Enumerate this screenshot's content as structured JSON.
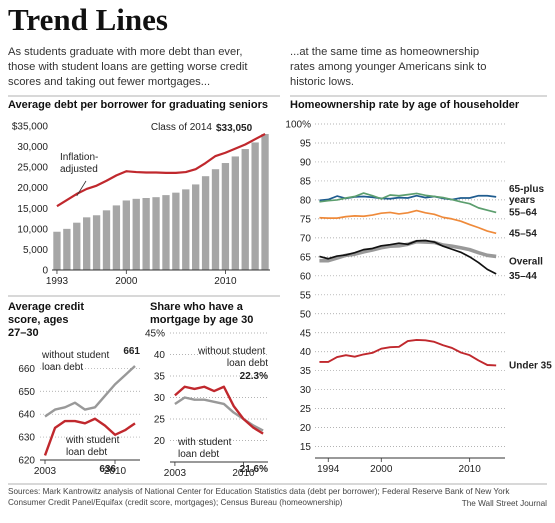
{
  "header": {
    "title": "Trend Lines",
    "left_intro": "As students graduate with more debt than ever, those with student loans are getting worse credit scores and taking out fewer mortgages...",
    "right_intro": "...at the same time as homeownership rates among younger Americans sink to historic lows."
  },
  "chart_data": [
    {
      "type": "bar",
      "title": "Average debt per borrower for graduating seniors",
      "x": [
        1993,
        1994,
        1995,
        1996,
        1997,
        1998,
        1999,
        2000,
        2001,
        2002,
        2003,
        2004,
        2005,
        2006,
        2007,
        2008,
        2009,
        2010,
        2011,
        2012,
        2013,
        2014
      ],
      "xlim": [
        1992.5,
        2014.5
      ],
      "xticks": [
        1993,
        2000,
        2010
      ],
      "ylim": [
        0,
        35000
      ],
      "yticks": [
        {
          "value": 35000,
          "label": "$35,000"
        },
        {
          "value": 30000,
          "label": "30,000"
        },
        {
          "value": 25000,
          "label": "25,000"
        },
        {
          "value": 20000,
          "label": "20,000"
        },
        {
          "value": 15000,
          "label": "15,000"
        },
        {
          "value": 10000,
          "label": "10,000"
        },
        {
          "value": 5000,
          "label": "5,000"
        },
        0
      ],
      "grid": false,
      "annotation": "Class of 2014",
      "series": [
        {
          "type": "bar",
          "color": "#a6a6a6",
          "values": [
            9300,
            10000,
            11500,
            12800,
            13300,
            14500,
            15700,
            16900,
            17300,
            17500,
            17700,
            18200,
            18800,
            19600,
            20800,
            22800,
            24500,
            26000,
            27600,
            29400,
            31000,
            33050
          ],
          "value_labels": [
            null,
            null,
            null,
            null,
            null,
            null,
            null,
            null,
            null,
            null,
            null,
            null,
            null,
            null,
            null,
            null,
            null,
            null,
            null,
            null,
            null,
            "$33,050"
          ]
        },
        {
          "type": "line",
          "name": "Inflation-adjusted",
          "color": "#c0282d",
          "values": [
            15500,
            17000,
            18500,
            19700,
            20500,
            21700,
            23000,
            24000,
            23800,
            23700,
            23700,
            23600,
            23600,
            23800,
            24500,
            26000,
            27700,
            28500,
            29500,
            30500,
            31800,
            33050
          ]
        }
      ]
    },
    {
      "type": "line",
      "title": "Average credit score, ages 27–30",
      "x": [
        2003,
        2004,
        2005,
        2006,
        2007,
        2008,
        2009,
        2010,
        2011,
        2012
      ],
      "xlim": [
        2002.5,
        2012.5
      ],
      "xticks": [
        2003,
        2010
      ],
      "ylim": [
        620,
        668
      ],
      "yticks": [
        660,
        650,
        640,
        630,
        620
      ],
      "grid": true,
      "series": [
        {
          "name": "without student loan debt",
          "color": "#999999",
          "values": [
            639,
            642,
            643,
            645,
            642,
            643,
            648,
            653,
            657,
            661
          ]
        },
        {
          "name": "with student loan debt",
          "color": "#c0282d",
          "values": [
            622,
            634,
            637,
            637,
            636,
            638,
            635,
            631,
            633,
            636
          ]
        }
      ]
    },
    {
      "type": "line",
      "title": "Share who have a mortgage by age 30",
      "x": [
        2003,
        2004,
        2005,
        2006,
        2007,
        2008,
        2009,
        2010,
        2011,
        2012
      ],
      "xlim": [
        2002.5,
        2012.5
      ],
      "xticks": [
        2003,
        2010
      ],
      "ylim": [
        15,
        45
      ],
      "yticks": [
        {
          "value": 45,
          "label": "45%"
        },
        40,
        35,
        30,
        25,
        20
      ],
      "grid": true,
      "series": [
        {
          "name": "without student loan debt",
          "color": "#999999",
          "values": [
            28.5,
            30,
            29.5,
            29.5,
            29,
            28.5,
            26.5,
            25,
            23.5,
            22.3
          ],
          "value_labels": [
            null,
            null,
            null,
            null,
            null,
            null,
            null,
            null,
            null,
            "22.3%"
          ]
        },
        {
          "name": "with student loan debt",
          "color": "#c0282d",
          "values": [
            30.5,
            32.5,
            32,
            32.5,
            31.5,
            32.5,
            28,
            25,
            23,
            21.6
          ],
          "value_labels": [
            null,
            null,
            null,
            null,
            null,
            null,
            null,
            null,
            null,
            "21.6%"
          ]
        }
      ]
    },
    {
      "type": "line",
      "title": "Homeownership rate by age of householder",
      "x": [
        1993,
        1994,
        1995,
        1996,
        1997,
        1998,
        1999,
        2000,
        2001,
        2002,
        2003,
        2004,
        2005,
        2006,
        2007,
        2008,
        2009,
        2010,
        2011,
        2012,
        2013
      ],
      "xlim": [
        1992.5,
        2014
      ],
      "xticks": [
        1994,
        2000,
        2010
      ],
      "ylim": [
        12,
        100
      ],
      "yticks": [
        {
          "value": 100,
          "label": "100%"
        },
        95,
        90,
        85,
        80,
        75,
        70,
        65,
        60,
        55,
        50,
        45,
        40,
        35,
        30,
        25,
        20,
        15
      ],
      "grid": true,
      "series": [
        {
          "name": "65-plus years",
          "color": "#1f5c8f",
          "values": [
            79.9,
            80.1,
            81.0,
            80.4,
            80.8,
            80.9,
            80.7,
            80.4,
            80.3,
            80.6,
            80.5,
            81.1,
            80.6,
            80.9,
            80.4,
            80.1,
            80.5,
            80.5,
            81.1,
            81.1,
            80.8
          ]
        },
        {
          "name": "55–64",
          "color": "#5c9e6e",
          "values": [
            79.5,
            79.8,
            80.0,
            80.5,
            80.9,
            81.8,
            81.1,
            80.3,
            81.3,
            81.1,
            81.4,
            81.7,
            81.2,
            80.9,
            80.6,
            80.1,
            79.5,
            79.0,
            77.9,
            77.3,
            76.7
          ]
        },
        {
          "name": "45–54",
          "color": "#ef8a3a",
          "values": [
            75.3,
            75.2,
            75.2,
            75.6,
            75.8,
            75.7,
            76.0,
            76.5,
            76.7,
            76.3,
            76.6,
            77.2,
            76.6,
            76.2,
            75.4,
            75.0,
            74.4,
            73.5,
            72.7,
            71.8,
            71.2
          ]
        },
        {
          "name": "Overall",
          "color": "#999999",
          "values": [
            64.0,
            64.0,
            64.7,
            65.4,
            65.7,
            66.3,
            66.8,
            67.4,
            67.8,
            67.9,
            68.3,
            69.0,
            68.9,
            68.8,
            68.1,
            67.8,
            67.4,
            66.9,
            66.1,
            65.4,
            65.1
          ]
        },
        {
          "name": "35–44",
          "color": "#111111",
          "values": [
            65.1,
            64.5,
            65.2,
            65.5,
            66.1,
            66.9,
            67.2,
            67.9,
            68.2,
            68.6,
            68.3,
            69.2,
            69.3,
            68.9,
            67.8,
            67.0,
            66.2,
            65.0,
            63.5,
            61.7,
            60.5
          ]
        },
        {
          "name": "Under 35",
          "color": "#c0282d",
          "values": [
            37.3,
            37.3,
            38.6,
            39.1,
            38.7,
            39.3,
            39.7,
            40.8,
            41.2,
            41.3,
            42.8,
            43.1,
            43.0,
            42.6,
            41.7,
            41.0,
            39.8,
            39.1,
            37.7,
            36.5,
            36.4
          ]
        }
      ]
    }
  ],
  "footer": {
    "sources": "Sources: Mark Kantrowitz analysis of National Center for Education Statistics data (debt per borrower); Federal Reserve Bank of New York Consumer Credit Panel/Equifax (credit score, mortgages); Census Bureau (homeownership)",
    "credit": "The Wall Street Journal"
  }
}
